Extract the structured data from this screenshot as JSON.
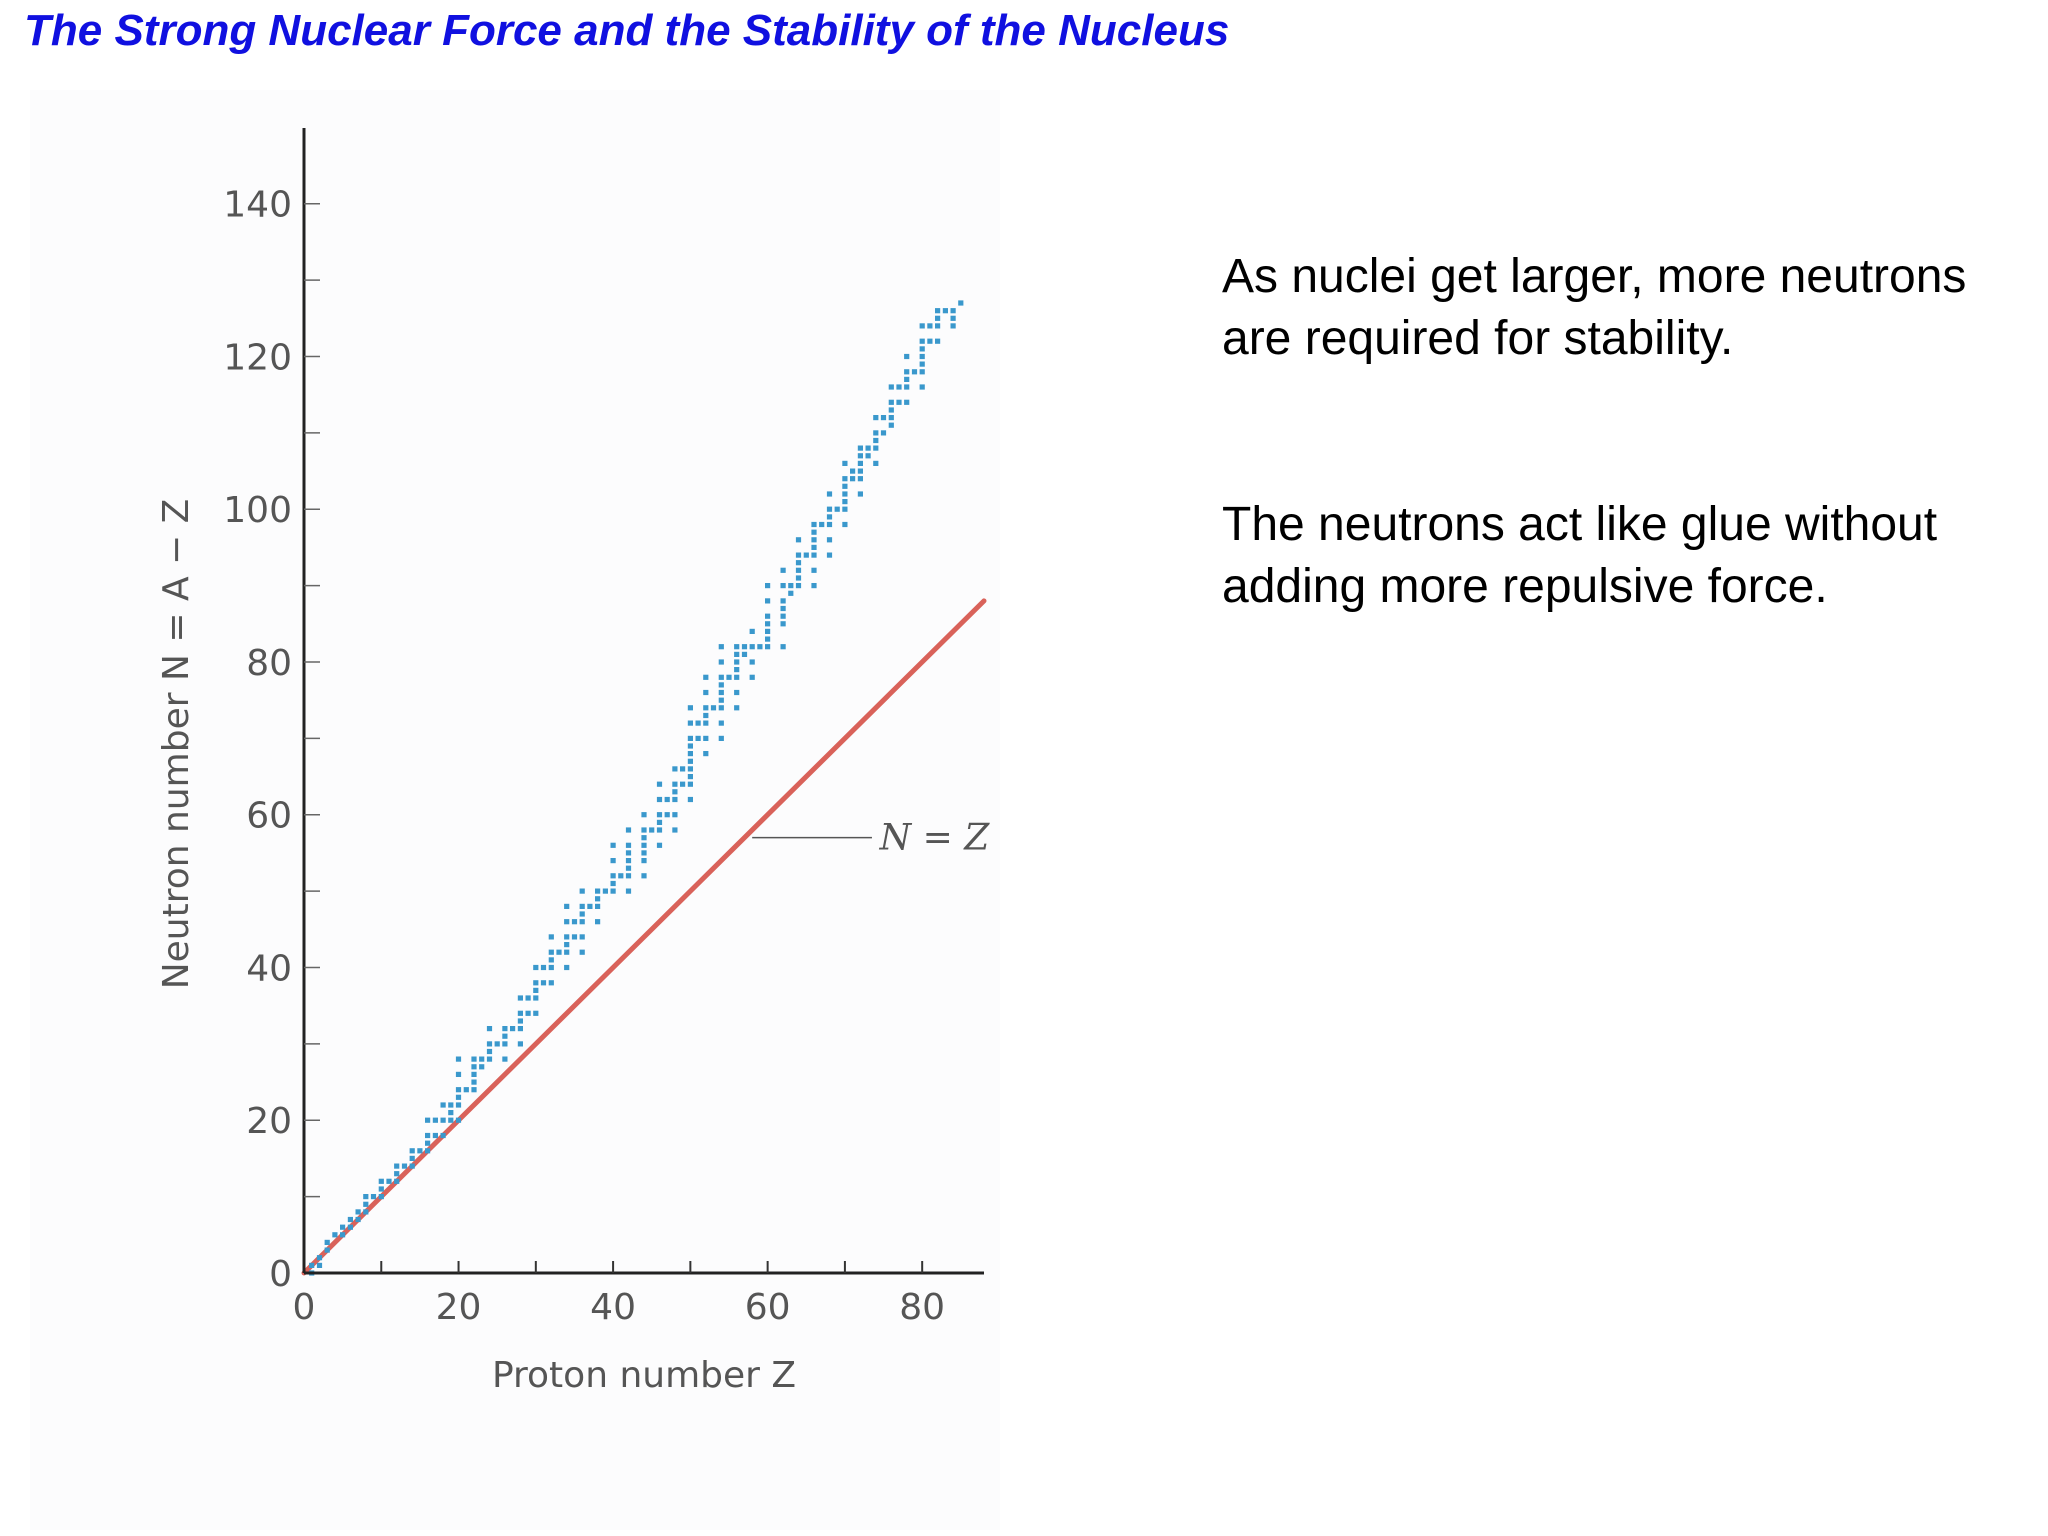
{
  "slide": {
    "title": "The Strong Nuclear Force and the Stability of the Nucleus",
    "paragraphs": [
      "As nuclei get larger, more neutrons are required for stability.",
      "The neutrons act like glue without adding more repulsive force."
    ]
  },
  "colors": {
    "title": "#1010e0",
    "stable_nuclei": "#3a98cc",
    "n_equals_z_line": "#d9625a",
    "axis": "#222222",
    "label_text": "#555555"
  },
  "chart_data": {
    "type": "scatter",
    "xlabel": "Proton number Z",
    "ylabel": "Neutron number N = A − Z",
    "xlim": [
      0,
      88
    ],
    "ylim": [
      0,
      149
    ],
    "xticks": [
      0,
      20,
      40,
      60,
      80
    ],
    "yticks": [
      0,
      20,
      40,
      60,
      80,
      100,
      120,
      140
    ],
    "grid": false,
    "legend": "none",
    "annotation": "N = Z",
    "series": [
      {
        "kind": "points",
        "color": "#3a98cc",
        "points": [
          [
            1,
            0
          ],
          [
            1,
            1
          ],
          [
            2,
            1
          ],
          [
            2,
            2
          ],
          [
            3,
            3
          ],
          [
            3,
            4
          ],
          [
            4,
            5
          ],
          [
            5,
            5
          ],
          [
            5,
            6
          ],
          [
            6,
            6
          ],
          [
            6,
            7
          ],
          [
            7,
            7
          ],
          [
            7,
            8
          ],
          [
            8,
            8
          ],
          [
            8,
            9
          ],
          [
            8,
            10
          ],
          [
            9,
            10
          ],
          [
            10,
            10
          ],
          [
            10,
            11
          ],
          [
            10,
            12
          ],
          [
            11,
            12
          ],
          [
            12,
            12
          ],
          [
            12,
            13
          ],
          [
            12,
            14
          ],
          [
            13,
            14
          ],
          [
            14,
            14
          ],
          [
            14,
            15
          ],
          [
            14,
            16
          ],
          [
            15,
            16
          ],
          [
            16,
            16
          ],
          [
            16,
            17
          ],
          [
            16,
            18
          ],
          [
            16,
            20
          ],
          [
            17,
            18
          ],
          [
            17,
            20
          ],
          [
            18,
            18
          ],
          [
            18,
            20
          ],
          [
            18,
            22
          ],
          [
            19,
            20
          ],
          [
            19,
            21
          ],
          [
            19,
            22
          ],
          [
            20,
            20
          ],
          [
            20,
            22
          ],
          [
            20,
            23
          ],
          [
            20,
            24
          ],
          [
            20,
            26
          ],
          [
            20,
            28
          ],
          [
            21,
            24
          ],
          [
            22,
            24
          ],
          [
            22,
            25
          ],
          [
            22,
            26
          ],
          [
            22,
            27
          ],
          [
            22,
            28
          ],
          [
            23,
            27
          ],
          [
            23,
            28
          ],
          [
            24,
            28
          ],
          [
            24,
            29
          ],
          [
            24,
            30
          ],
          [
            24,
            32
          ],
          [
            25,
            30
          ],
          [
            26,
            28
          ],
          [
            26,
            30
          ],
          [
            26,
            31
          ],
          [
            26,
            32
          ],
          [
            27,
            32
          ],
          [
            28,
            30
          ],
          [
            28,
            32
          ],
          [
            28,
            33
          ],
          [
            28,
            34
          ],
          [
            28,
            36
          ],
          [
            29,
            34
          ],
          [
            29,
            36
          ],
          [
            30,
            34
          ],
          [
            30,
            36
          ],
          [
            30,
            37
          ],
          [
            30,
            38
          ],
          [
            30,
            40
          ],
          [
            31,
            38
          ],
          [
            31,
            40
          ],
          [
            32,
            38
          ],
          [
            32,
            40
          ],
          [
            32,
            41
          ],
          [
            32,
            42
          ],
          [
            32,
            44
          ],
          [
            33,
            42
          ],
          [
            34,
            40
          ],
          [
            34,
            42
          ],
          [
            34,
            43
          ],
          [
            34,
            44
          ],
          [
            34,
            46
          ],
          [
            34,
            48
          ],
          [
            35,
            44
          ],
          [
            35,
            46
          ],
          [
            36,
            42
          ],
          [
            36,
            44
          ],
          [
            36,
            46
          ],
          [
            36,
            47
          ],
          [
            36,
            48
          ],
          [
            36,
            50
          ],
          [
            37,
            48
          ],
          [
            38,
            46
          ],
          [
            38,
            48
          ],
          [
            38,
            49
          ],
          [
            38,
            50
          ],
          [
            39,
            50
          ],
          [
            40,
            50
          ],
          [
            40,
            51
          ],
          [
            40,
            52
          ],
          [
            40,
            54
          ],
          [
            40,
            56
          ],
          [
            41,
            52
          ],
          [
            42,
            50
          ],
          [
            42,
            52
          ],
          [
            42,
            53
          ],
          [
            42,
            54
          ],
          [
            42,
            55
          ],
          [
            42,
            56
          ],
          [
            42,
            58
          ],
          [
            44,
            52
          ],
          [
            44,
            54
          ],
          [
            44,
            55
          ],
          [
            44,
            56
          ],
          [
            44,
            57
          ],
          [
            44,
            58
          ],
          [
            44,
            60
          ],
          [
            45,
            58
          ],
          [
            46,
            56
          ],
          [
            46,
            58
          ],
          [
            46,
            59
          ],
          [
            46,
            60
          ],
          [
            46,
            62
          ],
          [
            46,
            64
          ],
          [
            47,
            60
          ],
          [
            47,
            62
          ],
          [
            48,
            58
          ],
          [
            48,
            60
          ],
          [
            48,
            62
          ],
          [
            48,
            63
          ],
          [
            48,
            64
          ],
          [
            48,
            66
          ],
          [
            49,
            64
          ],
          [
            49,
            66
          ],
          [
            50,
            62
          ],
          [
            50,
            64
          ],
          [
            50,
            65
          ],
          [
            50,
            66
          ],
          [
            50,
            67
          ],
          [
            50,
            68
          ],
          [
            50,
            69
          ],
          [
            50,
            70
          ],
          [
            50,
            72
          ],
          [
            50,
            74
          ],
          [
            51,
            70
          ],
          [
            51,
            72
          ],
          [
            52,
            68
          ],
          [
            52,
            70
          ],
          [
            52,
            72
          ],
          [
            52,
            73
          ],
          [
            52,
            74
          ],
          [
            52,
            76
          ],
          [
            52,
            78
          ],
          [
            53,
            74
          ],
          [
            54,
            70
          ],
          [
            54,
            72
          ],
          [
            54,
            74
          ],
          [
            54,
            75
          ],
          [
            54,
            76
          ],
          [
            54,
            77
          ],
          [
            54,
            78
          ],
          [
            54,
            80
          ],
          [
            54,
            82
          ],
          [
            55,
            78
          ],
          [
            56,
            74
          ],
          [
            56,
            76
          ],
          [
            56,
            78
          ],
          [
            56,
            79
          ],
          [
            56,
            80
          ],
          [
            56,
            81
          ],
          [
            56,
            82
          ],
          [
            57,
            81
          ],
          [
            57,
            82
          ],
          [
            58,
            78
          ],
          [
            58,
            80
          ],
          [
            58,
            82
          ],
          [
            58,
            84
          ],
          [
            59,
            82
          ],
          [
            60,
            82
          ],
          [
            60,
            83
          ],
          [
            60,
            84
          ],
          [
            60,
            85
          ],
          [
            60,
            86
          ],
          [
            60,
            88
          ],
          [
            60,
            90
          ],
          [
            62,
            82
          ],
          [
            62,
            85
          ],
          [
            62,
            86
          ],
          [
            62,
            87
          ],
          [
            62,
            88
          ],
          [
            62,
            90
          ],
          [
            62,
            92
          ],
          [
            63,
            89
          ],
          [
            63,
            90
          ],
          [
            64,
            90
          ],
          [
            64,
            91
          ],
          [
            64,
            92
          ],
          [
            64,
            93
          ],
          [
            64,
            94
          ],
          [
            64,
            96
          ],
          [
            65,
            94
          ],
          [
            66,
            90
          ],
          [
            66,
            92
          ],
          [
            66,
            94
          ],
          [
            66,
            95
          ],
          [
            66,
            96
          ],
          [
            66,
            97
          ],
          [
            66,
            98
          ],
          [
            67,
            98
          ],
          [
            68,
            94
          ],
          [
            68,
            96
          ],
          [
            68,
            98
          ],
          [
            68,
            99
          ],
          [
            68,
            100
          ],
          [
            68,
            102
          ],
          [
            69,
            100
          ],
          [
            70,
            98
          ],
          [
            70,
            100
          ],
          [
            70,
            101
          ],
          [
            70,
            102
          ],
          [
            70,
            103
          ],
          [
            70,
            104
          ],
          [
            70,
            106
          ],
          [
            71,
            104
          ],
          [
            71,
            105
          ],
          [
            72,
            102
          ],
          [
            72,
            104
          ],
          [
            72,
            105
          ],
          [
            72,
            106
          ],
          [
            72,
            107
          ],
          [
            72,
            108
          ],
          [
            73,
            107
          ],
          [
            73,
            108
          ],
          [
            74,
            106
          ],
          [
            74,
            108
          ],
          [
            74,
            109
          ],
          [
            74,
            110
          ],
          [
            74,
            112
          ],
          [
            75,
            110
          ],
          [
            75,
            112
          ],
          [
            76,
            111
          ],
          [
            76,
            112
          ],
          [
            76,
            113
          ],
          [
            76,
            114
          ],
          [
            76,
            116
          ],
          [
            77,
            114
          ],
          [
            77,
            116
          ],
          [
            78,
            114
          ],
          [
            78,
            116
          ],
          [
            78,
            117
          ],
          [
            78,
            118
          ],
          [
            78,
            120
          ],
          [
            79,
            118
          ],
          [
            80,
            116
          ],
          [
            80,
            118
          ],
          [
            80,
            119
          ],
          [
            80,
            120
          ],
          [
            80,
            121
          ],
          [
            80,
            122
          ],
          [
            80,
            124
          ],
          [
            81,
            122
          ],
          [
            81,
            124
          ],
          [
            82,
            122
          ],
          [
            82,
            124
          ],
          [
            82,
            125
          ],
          [
            82,
            126
          ],
          [
            83,
            126
          ],
          [
            84,
            124
          ],
          [
            84,
            125
          ],
          [
            84,
            126
          ],
          [
            85,
            127
          ]
        ]
      },
      {
        "kind": "line",
        "color": "#d9625a",
        "x": [
          0,
          88
        ],
        "y": [
          0,
          88
        ]
      }
    ]
  }
}
